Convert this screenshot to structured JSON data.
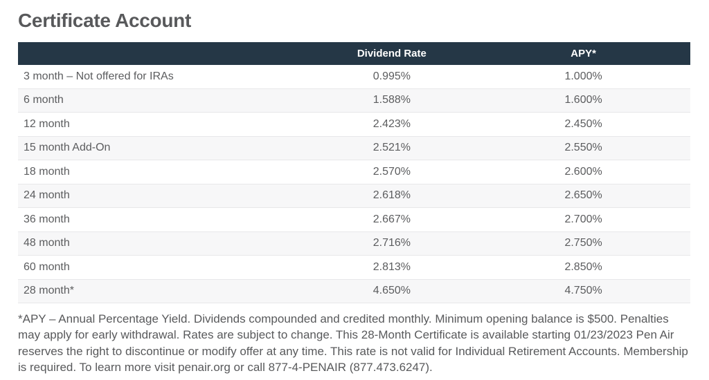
{
  "page": {
    "title": "Certificate Account"
  },
  "table": {
    "header": {
      "term": "",
      "dividend_rate": "Dividend Rate",
      "apy": "APY*"
    },
    "rows": [
      {
        "term": "3 month – Not offered for IRAs",
        "dividend_rate": "0.995%",
        "apy": "1.000%"
      },
      {
        "term": "6 month",
        "dividend_rate": "1.588%",
        "apy": "1.600%"
      },
      {
        "term": "12 month",
        "dividend_rate": "2.423%",
        "apy": "2.450%"
      },
      {
        "term": "15 month Add-On",
        "dividend_rate": "2.521%",
        "apy": "2.550%"
      },
      {
        "term": "18 month",
        "dividend_rate": "2.570%",
        "apy": "2.600%"
      },
      {
        "term": "24 month",
        "dividend_rate": "2.618%",
        "apy": "2.650%"
      },
      {
        "term": "36 month",
        "dividend_rate": "2.667%",
        "apy": "2.700%"
      },
      {
        "term": "48 month",
        "dividend_rate": "2.716%",
        "apy": "2.750%"
      },
      {
        "term": "60 month",
        "dividend_rate": "2.813%",
        "apy": "2.850%"
      },
      {
        "term": "28 month*",
        "dividend_rate": "4.650%",
        "apy": "4.750%"
      }
    ]
  },
  "footnote": "*APY – Annual Percentage Yield. Dividends compounded and credited monthly. Minimum opening balance is $500. Penalties may apply for early withdrawal. Rates are subject to change. This 28-Month Certificate is available starting 01/23/2023 Pen Air reserves the right to discontinue or modify offer at any time. This rate is not valid for Individual Retirement Accounts. Membership is required. To learn more visit penair.org or call 877-4-PENAIR (877.473.6247).",
  "colors": {
    "header_bg": "#253746",
    "header_text": "#ffffff",
    "row_stripe": "#f7f7f8",
    "row_border": "#e7e7e9",
    "text": "#58595b"
  }
}
